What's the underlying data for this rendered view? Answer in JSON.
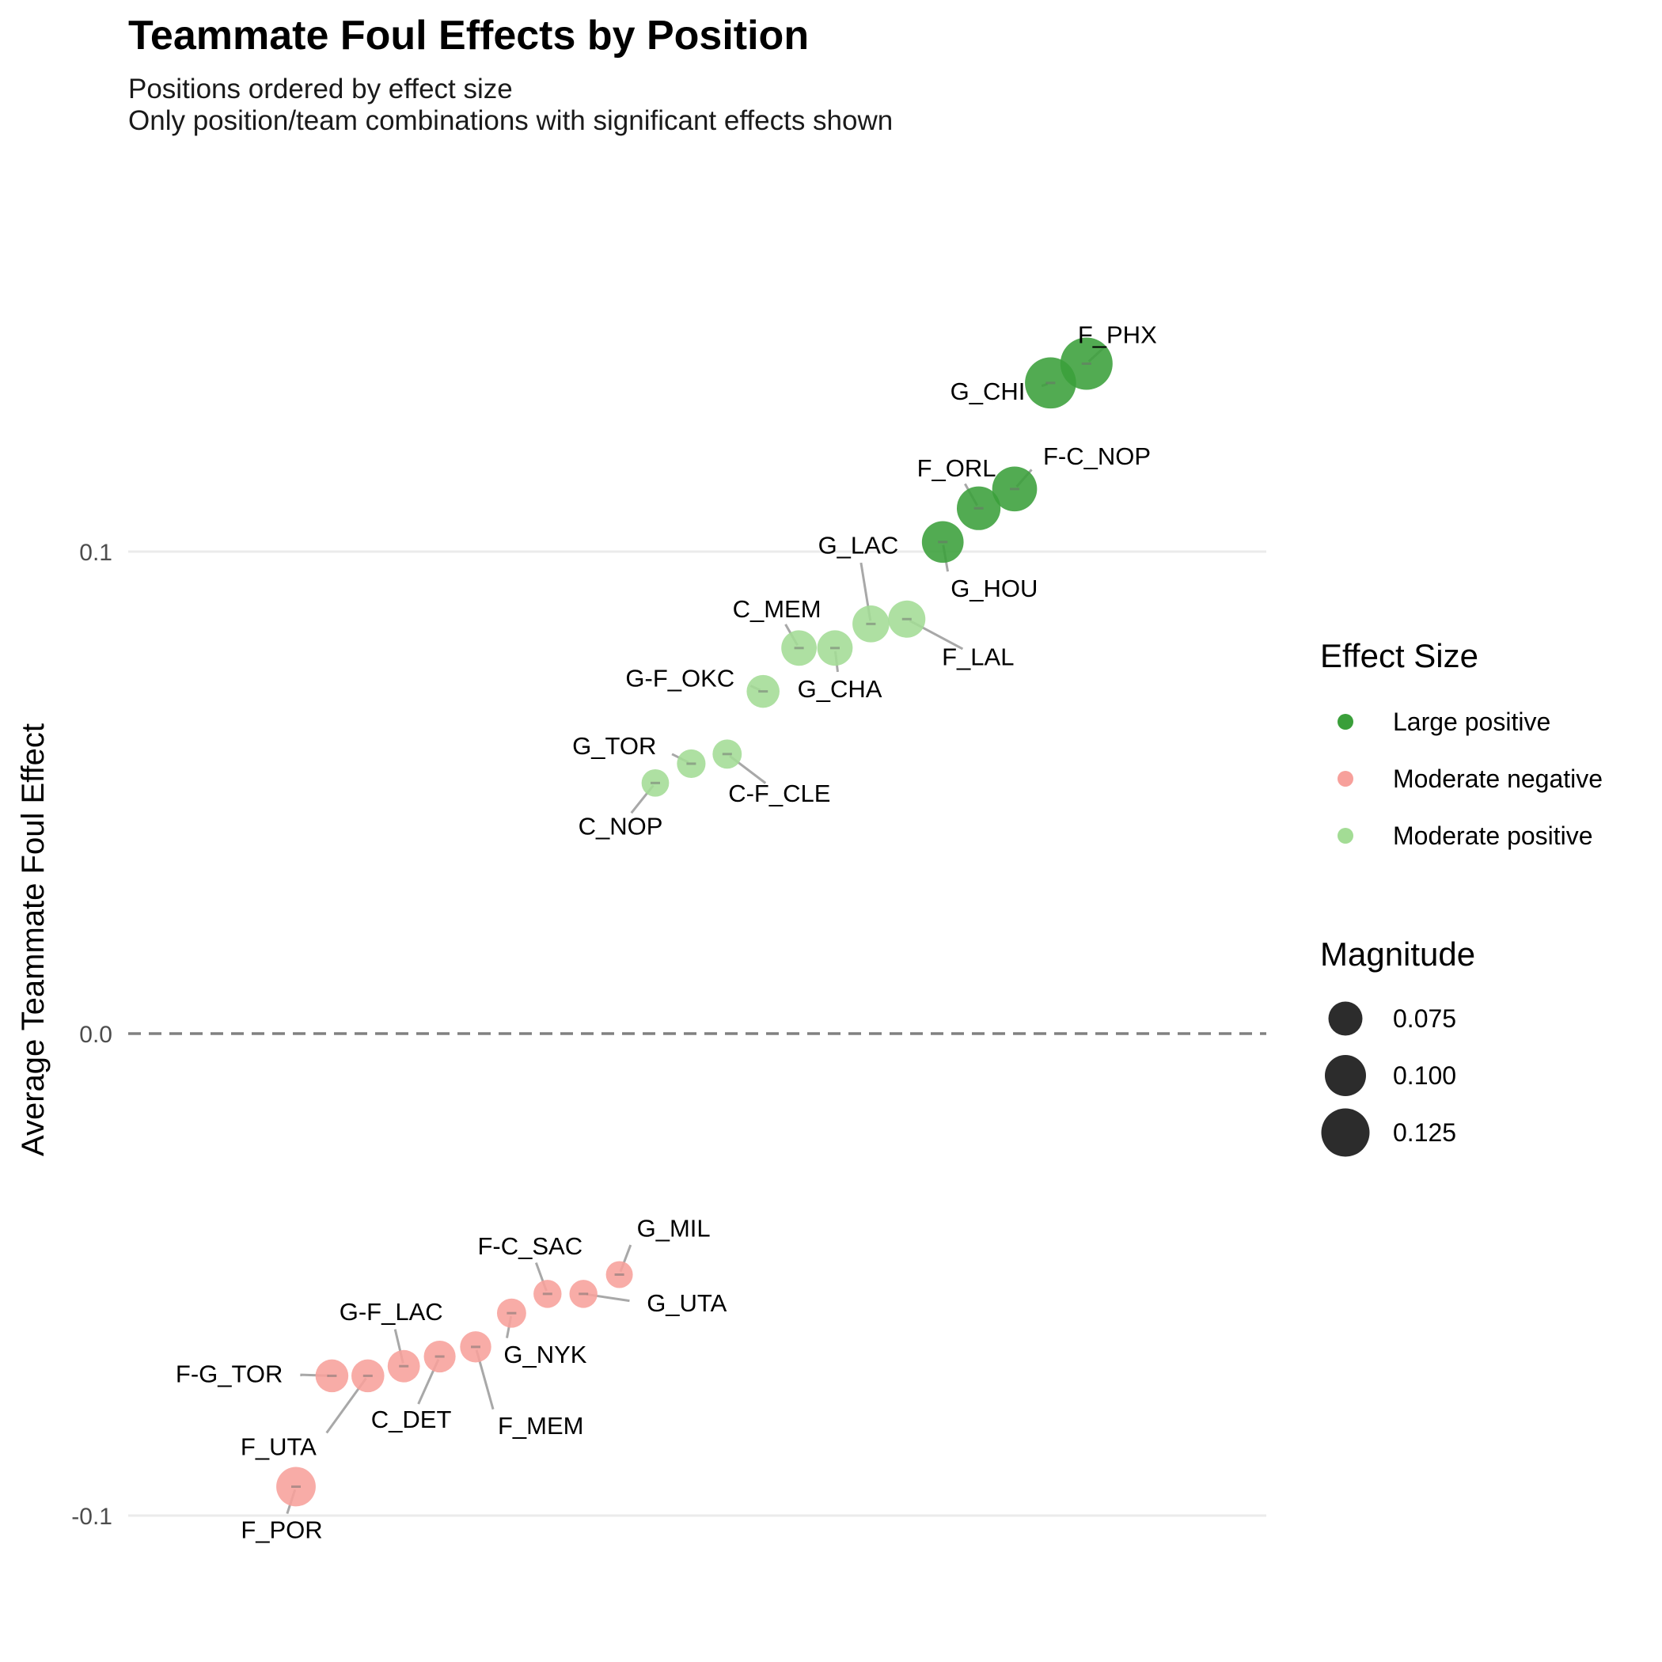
{
  "chart_data": {
    "type": "scatter",
    "title": "Teammate Foul Effects by Position",
    "subtitle_lines": [
      "Positions ordered by effect size",
      "Only position/team combinations with significant effects shown"
    ],
    "ylabel": "Average Teammate Foul Effect",
    "xlabel": "",
    "ylim": [
      -0.105,
      0.148
    ],
    "yticks": [
      -0.1,
      0.0,
      0.1
    ],
    "ytick_labels": [
      "-0.1",
      "0.0",
      "0.1"
    ],
    "reference_line": 0.0,
    "grid": true,
    "legend_position": "right",
    "colors": {
      "Large positive": "#3a9f3a",
      "Moderate negative": "#f7a09b",
      "Moderate positive": "#a3dc95"
    },
    "color_legend": {
      "title": "Effect Size",
      "entries": [
        "Large positive",
        "Moderate negative",
        "Moderate positive"
      ]
    },
    "size_legend": {
      "title": "Magnitude",
      "values": [
        0.075,
        0.1,
        0.125
      ],
      "labels": [
        "0.075",
        "0.100",
        "0.125"
      ]
    },
    "points": [
      {
        "rank": 1,
        "label": "F_POR",
        "y": -0.094,
        "effect_size": "Moderate negative",
        "magnitude": 0.094
      },
      {
        "rank": 2,
        "label": "F-G_TOR",
        "y": -0.071,
        "effect_size": "Moderate negative",
        "magnitude": 0.071
      },
      {
        "rank": 3,
        "label": "F_UTA",
        "y": -0.071,
        "effect_size": "Moderate negative",
        "magnitude": 0.071
      },
      {
        "rank": 4,
        "label": "G-F_LAC",
        "y": -0.069,
        "effect_size": "Moderate negative",
        "magnitude": 0.069
      },
      {
        "rank": 5,
        "label": "C_DET",
        "y": -0.067,
        "effect_size": "Moderate negative",
        "magnitude": 0.067
      },
      {
        "rank": 6,
        "label": "F_MEM",
        "y": -0.065,
        "effect_size": "Moderate negative",
        "magnitude": 0.065
      },
      {
        "rank": 7,
        "label": "G_NYK",
        "y": -0.058,
        "effect_size": "Moderate negative",
        "magnitude": 0.058
      },
      {
        "rank": 8,
        "label": "F-C_SAC",
        "y": -0.054,
        "effect_size": "Moderate negative",
        "magnitude": 0.054
      },
      {
        "rank": 9,
        "label": "G_UTA",
        "y": -0.054,
        "effect_size": "Moderate negative",
        "magnitude": 0.054
      },
      {
        "rank": 10,
        "label": "G_MIL",
        "y": -0.05,
        "effect_size": "Moderate negative",
        "magnitude": 0.05
      },
      {
        "rank": 11,
        "label": "C_NOP",
        "y": 0.052,
        "effect_size": "Moderate positive",
        "magnitude": 0.052
      },
      {
        "rank": 12,
        "label": "G_TOR",
        "y": 0.056,
        "effect_size": "Moderate positive",
        "magnitude": 0.056
      },
      {
        "rank": 13,
        "label": "C-F_CLE",
        "y": 0.058,
        "effect_size": "Moderate positive",
        "magnitude": 0.058
      },
      {
        "rank": 14,
        "label": "G-F_OKC",
        "y": 0.071,
        "effect_size": "Moderate positive",
        "magnitude": 0.071
      },
      {
        "rank": 15,
        "label": "C_MEM",
        "y": 0.08,
        "effect_size": "Moderate positive",
        "magnitude": 0.08
      },
      {
        "rank": 16,
        "label": "G_CHA",
        "y": 0.08,
        "effect_size": "Moderate positive",
        "magnitude": 0.08
      },
      {
        "rank": 17,
        "label": "G_LAC",
        "y": 0.085,
        "effect_size": "Moderate positive",
        "magnitude": 0.085
      },
      {
        "rank": 18,
        "label": "F_LAL",
        "y": 0.086,
        "effect_size": "Moderate positive",
        "magnitude": 0.086
      },
      {
        "rank": 19,
        "label": "G_HOU",
        "y": 0.102,
        "effect_size": "Large positive",
        "magnitude": 0.102
      },
      {
        "rank": 20,
        "label": "F_ORL",
        "y": 0.109,
        "effect_size": "Large positive",
        "magnitude": 0.109
      },
      {
        "rank": 21,
        "label": "F-C_NOP",
        "y": 0.113,
        "effect_size": "Large positive",
        "magnitude": 0.113
      },
      {
        "rank": 22,
        "label": "G_CHI",
        "y": 0.135,
        "effect_size": "Large positive",
        "magnitude": 0.135
      },
      {
        "rank": 23,
        "label": "F_PHX",
        "y": 0.139,
        "effect_size": "Large positive",
        "magnitude": 0.139
      }
    ]
  }
}
